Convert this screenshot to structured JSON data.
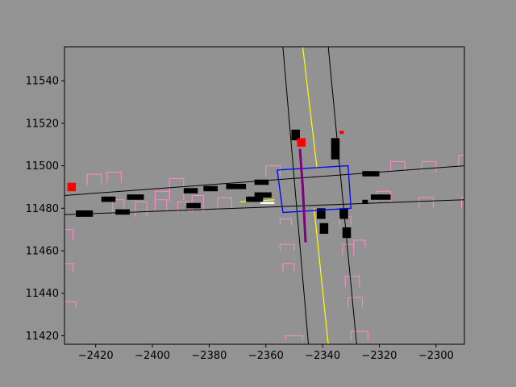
{
  "colors": {
    "figure_bg": "#939393",
    "axes_bg": "#929292",
    "road": "#000000",
    "center_line": "#ffff00",
    "intersection_box": "#0000ff",
    "path": "#800080",
    "agent": "#ff0000",
    "parking": "#ff8cc6",
    "vehicle": "#000000",
    "marker_white": "#ffffff"
  },
  "chart_data": {
    "type": "scatter",
    "title": "",
    "xlabel": "",
    "ylabel": "",
    "xlim": [
      -2431,
      -2290
    ],
    "ylim": [
      11416,
      11556
    ],
    "xticks": [
      -2420,
      -2400,
      -2380,
      -2360,
      -2340,
      -2320,
      -2300
    ],
    "yticks": [
      11420,
      11440,
      11460,
      11480,
      11500,
      11520,
      11540
    ],
    "xtick_labels": [
      "−2420",
      "−2400",
      "−2380",
      "−2360",
      "−2340",
      "−2320",
      "−2300"
    ],
    "ytick_labels": [
      "11420",
      "11440",
      "11460",
      "11480",
      "11500",
      "11520",
      "11540"
    ],
    "grid": false,
    "road_edges": [
      [
        [
          -2431,
          11486
        ],
        [
          -2290,
          11500
        ]
      ],
      [
        [
          -2431,
          11477
        ],
        [
          -2290,
          11484
        ]
      ],
      [
        [
          -2354,
          11556
        ],
        [
          -2345,
          11416
        ]
      ],
      [
        [
          -2338,
          11556
        ],
        [
          -2328,
          11416
        ]
      ]
    ],
    "center_lines": [
      [
        [
          -2347,
          11556
        ],
        [
          -2342,
          11499
        ]
      ],
      [
        [
          -2343,
          11480
        ],
        [
          -2338,
          11416
        ]
      ],
      [
        [
          -2369,
          11483
        ],
        [
          -2357,
          11484
        ]
      ]
    ],
    "intersection_box": [
      [
        -2356,
        11498
      ],
      [
        -2331,
        11500
      ],
      [
        -2330,
        11480
      ],
      [
        -2354,
        11478
      ]
    ],
    "path": [
      [
        -2348,
        11508
      ],
      [
        -2347,
        11490
      ],
      [
        -2346,
        11464
      ]
    ],
    "agents": [
      {
        "x": -2349,
        "y": 11509,
        "w": 3,
        "h": 4
      },
      {
        "x": -2334,
        "y": 11515,
        "w": 1.5,
        "h": 1.5
      },
      {
        "x": -2430,
        "y": 11488,
        "w": 3,
        "h": 4
      }
    ],
    "vehicles": [
      {
        "x": -2427,
        "y": 11476,
        "w": 6,
        "h": 3
      },
      {
        "x": -2418,
        "y": 11483,
        "w": 5,
        "h": 2.5
      },
      {
        "x": -2409,
        "y": 11484,
        "w": 6,
        "h": 2.5
      },
      {
        "x": -2413,
        "y": 11477,
        "w": 5,
        "h": 2.5
      },
      {
        "x": -2389,
        "y": 11487,
        "w": 5,
        "h": 2.5
      },
      {
        "x": -2382,
        "y": 11488,
        "w": 5,
        "h": 2.5
      },
      {
        "x": -2374,
        "y": 11489,
        "w": 7,
        "h": 2.5
      },
      {
        "x": -2364,
        "y": 11491,
        "w": 5,
        "h": 2.5
      },
      {
        "x": -2388,
        "y": 11480,
        "w": 5,
        "h": 2.5
      },
      {
        "x": -2367,
        "y": 11483,
        "w": 6,
        "h": 2.5
      },
      {
        "x": -2364,
        "y": 11485,
        "w": 6,
        "h": 2.5
      },
      {
        "x": -2351,
        "y": 11512,
        "w": 3,
        "h": 5
      },
      {
        "x": -2337,
        "y": 11508,
        "w": 3,
        "h": 5
      },
      {
        "x": -2337,
        "y": 11503,
        "w": 3,
        "h": 5
      },
      {
        "x": -2326,
        "y": 11495,
        "w": 6,
        "h": 2.5
      },
      {
        "x": -2323,
        "y": 11484,
        "w": 7,
        "h": 2.5
      },
      {
        "x": -2326,
        "y": 11482,
        "w": 2,
        "h": 2
      },
      {
        "x": -2342,
        "y": 11475,
        "w": 3,
        "h": 5
      },
      {
        "x": -2334,
        "y": 11475,
        "w": 3,
        "h": 5
      },
      {
        "x": -2341,
        "y": 11468,
        "w": 3,
        "h": 5
      },
      {
        "x": -2333,
        "y": 11466,
        "w": 3,
        "h": 5
      }
    ],
    "white_markers": [
      {
        "x": -2362,
        "y": 11482,
        "w": 5,
        "h": 1
      }
    ],
    "parking_slots": [
      [
        -2423,
        11491,
        5,
        5
      ],
      [
        -2416,
        11492,
        5,
        5
      ],
      [
        -2399,
        11483,
        5,
        5
      ],
      [
        -2394,
        11484,
        5,
        10
      ],
      [
        -2377,
        11480,
        5,
        5
      ],
      [
        -2360,
        11495,
        5,
        5
      ],
      [
        -2414,
        11477,
        4,
        7
      ],
      [
        -2406,
        11476,
        4,
        7
      ],
      [
        -2399,
        11479,
        4,
        5
      ],
      [
        -2391,
        11478,
        4,
        5
      ],
      [
        -2386,
        11478,
        4,
        8
      ],
      [
        -2316,
        11497,
        5,
        5
      ],
      [
        -2305,
        11497,
        5,
        5
      ],
      [
        -2292,
        11500,
        5,
        5
      ],
      [
        -2321,
        11483,
        5,
        5
      ],
      [
        -2306,
        11480,
        5,
        5
      ],
      [
        -2291,
        11480,
        5,
        5
      ],
      [
        -2431,
        11465,
        3,
        5
      ],
      [
        -2431,
        11450,
        3,
        4
      ],
      [
        -2431,
        11433,
        4,
        3
      ],
      [
        -2355,
        11472,
        4,
        3
      ],
      [
        -2355,
        11460,
        5,
        3
      ],
      [
        -2354,
        11450,
        4,
        4
      ],
      [
        -2353,
        11418,
        6,
        2
      ],
      [
        -2334,
        11472,
        4,
        4
      ],
      [
        -2333,
        11458,
        4,
        5
      ],
      [
        -2332,
        11443,
        5,
        5
      ],
      [
        -2331,
        11433,
        5,
        5
      ],
      [
        -2330,
        11418,
        6,
        4
      ],
      [
        -2329,
        11462,
        4,
        3
      ]
    ]
  }
}
